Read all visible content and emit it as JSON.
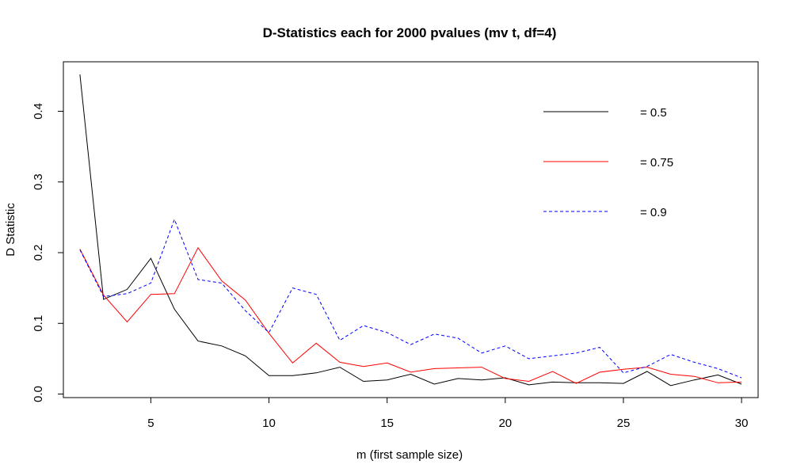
{
  "chart_data": {
    "type": "line",
    "title": "D-Statistics each for 2000 pvalues (mv t, df=4)",
    "xlabel": "m (first sample size)",
    "ylabel": "D Statistic",
    "xlim": [
      1.3,
      30.7
    ],
    "ylim": [
      -0.005,
      0.47
    ],
    "xticks": [
      5,
      10,
      15,
      20,
      25,
      30
    ],
    "yticks": [
      0.0,
      0.1,
      0.2,
      0.3,
      0.4
    ],
    "xtick_labels": [
      "5",
      "10",
      "15",
      "20",
      "25",
      "30"
    ],
    "ytick_labels": [
      "0.0",
      "0.1",
      "0.2",
      "0.3",
      "0.4"
    ],
    "x": [
      2,
      3,
      4,
      5,
      6,
      7,
      8,
      9,
      10,
      11,
      12,
      13,
      14,
      15,
      16,
      17,
      18,
      19,
      20,
      21,
      22,
      23,
      24,
      25,
      26,
      27,
      28,
      29,
      30
    ],
    "legend_position": "top-right",
    "grid": false,
    "series": [
      {
        "name": "= 0.5",
        "color": "#000000",
        "dash": "solid",
        "values": [
          0.452,
          0.134,
          0.148,
          0.192,
          0.12,
          0.075,
          0.068,
          0.054,
          0.026,
          0.026,
          0.03,
          0.038,
          0.018,
          0.02,
          0.028,
          0.014,
          0.022,
          0.02,
          0.023,
          0.013,
          0.017,
          0.016,
          0.016,
          0.015,
          0.032,
          0.012,
          0.02,
          0.027,
          0.014
        ]
      },
      {
        "name": "= 0.75",
        "color": "#ff0000",
        "dash": "solid",
        "values": [
          0.205,
          0.14,
          0.102,
          0.141,
          0.142,
          0.207,
          0.16,
          0.133,
          0.086,
          0.044,
          0.072,
          0.045,
          0.039,
          0.044,
          0.031,
          0.036,
          0.037,
          0.038,
          0.022,
          0.018,
          0.032,
          0.015,
          0.031,
          0.035,
          0.038,
          0.028,
          0.025,
          0.016,
          0.017
        ]
      },
      {
        "name": "= 0.9",
        "color": "#0000ff",
        "dash": "dashed",
        "values": [
          0.204,
          0.138,
          0.142,
          0.157,
          0.247,
          0.162,
          0.157,
          0.118,
          0.087,
          0.15,
          0.141,
          0.076,
          0.097,
          0.087,
          0.07,
          0.085,
          0.079,
          0.058,
          0.068,
          0.05,
          0.054,
          0.058,
          0.066,
          0.03,
          0.039,
          0.056,
          0.045,
          0.036,
          0.023
        ]
      }
    ]
  }
}
